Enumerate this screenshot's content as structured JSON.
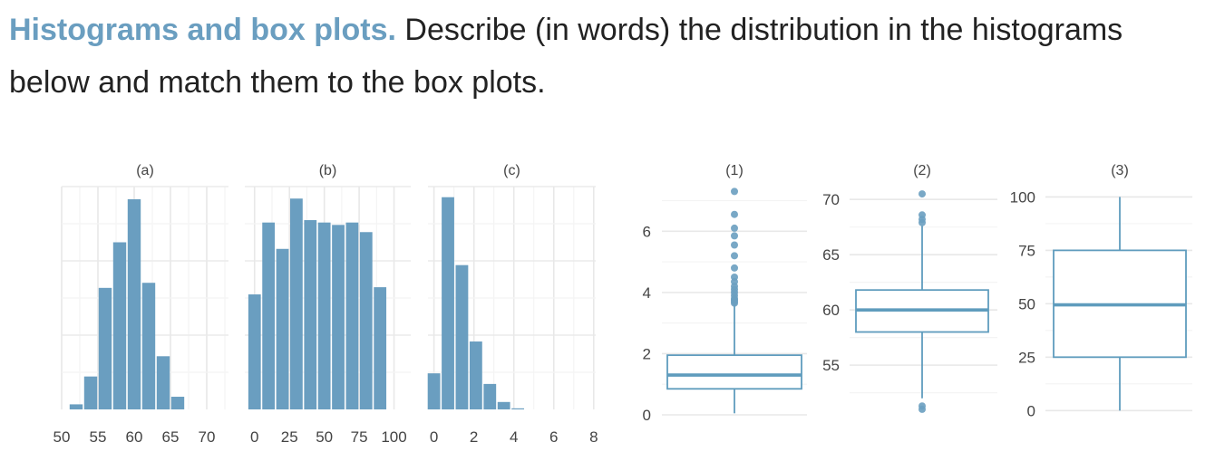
{
  "exercise": {
    "heading": "Histograms and box plots.",
    "text": "Describe (in words) the distribution in the histograms below and match them to the box plots."
  },
  "colors": {
    "bar_fill": "#6a9ec0",
    "box_stroke": "#5f9cbd",
    "grid_major": "#e8e8e8",
    "grid_minor": "#f4f4f4",
    "axis_text": "#444444"
  },
  "chart_data": [
    {
      "id": "a",
      "type": "bar",
      "title": "(a)",
      "xlim": [
        50,
        73
      ],
      "x_ticks": [
        50,
        55,
        60,
        65,
        70
      ],
      "bin_width": 2,
      "bin_centers": [
        52,
        54,
        56,
        58,
        60,
        62,
        64,
        66
      ],
      "values": [
        2,
        13,
        48,
        66,
        83,
        50,
        21,
        5
      ],
      "ylim": [
        0,
        88
      ],
      "grid": true,
      "show_y_axis": false
    },
    {
      "id": "b",
      "type": "bar",
      "title": "(b)",
      "xlim": [
        -7,
        112
      ],
      "x_ticks": [
        0,
        25,
        50,
        75,
        100
      ],
      "bin_width": 10,
      "bin_centers": [
        0,
        10,
        20,
        30,
        40,
        50,
        60,
        70,
        80,
        90,
        100
      ],
      "values": [
        48,
        78,
        67,
        88,
        79,
        78,
        77,
        78,
        74,
        51,
        0
      ],
      "ylim": [
        0,
        93
      ],
      "grid": true,
      "show_y_axis": false
    },
    {
      "id": "c",
      "type": "bar",
      "title": "(c)",
      "xlim": [
        -0.3,
        8.1
      ],
      "x_ticks": [
        0,
        2,
        4,
        6,
        8
      ],
      "bin_width": 0.7,
      "bin_centers": [
        0,
        0.7,
        1.4,
        2.1,
        2.8,
        3.5,
        4.2,
        4.9,
        5.6
      ],
      "values": [
        17,
        100,
        68,
        32,
        12,
        3.5,
        0.5,
        0,
        0
      ],
      "ylim": [
        0,
        105
      ],
      "grid": true,
      "show_y_axis": false
    },
    {
      "id": "1",
      "type": "box",
      "title": "(1)",
      "ylim": [
        0,
        7.4
      ],
      "y_ticks": [
        0,
        2,
        4,
        6
      ],
      "whisker_low": 0.05,
      "q1": 0.85,
      "median": 1.3,
      "q3": 1.95,
      "whisker_high": 3.6,
      "outliers": [
        3.65,
        3.7,
        3.75,
        3.8,
        3.9,
        4.0,
        4.1,
        4.2,
        4.35,
        4.5,
        4.8,
        5.2,
        5.55,
        5.85,
        6.1,
        6.55,
        7.3
      ]
    },
    {
      "id": "2",
      "type": "box",
      "title": "(2)",
      "ylim": [
        50.5,
        71
      ],
      "y_ticks": [
        55,
        60,
        65,
        70
      ],
      "whisker_low": 52.0,
      "q1": 58.0,
      "median": 60.0,
      "q3": 61.8,
      "whisker_high": 67.6,
      "outliers": [
        51.0,
        51.3,
        67.9,
        68.2,
        68.6,
        70.5
      ]
    },
    {
      "id": "3",
      "type": "box",
      "title": "(3)",
      "ylim": [
        -2,
        104
      ],
      "y_ticks": [
        0,
        25,
        50,
        75,
        100
      ],
      "whisker_low": 0,
      "q1": 25,
      "median": 49.5,
      "q3": 75,
      "whisker_high": 100,
      "outliers": []
    }
  ]
}
